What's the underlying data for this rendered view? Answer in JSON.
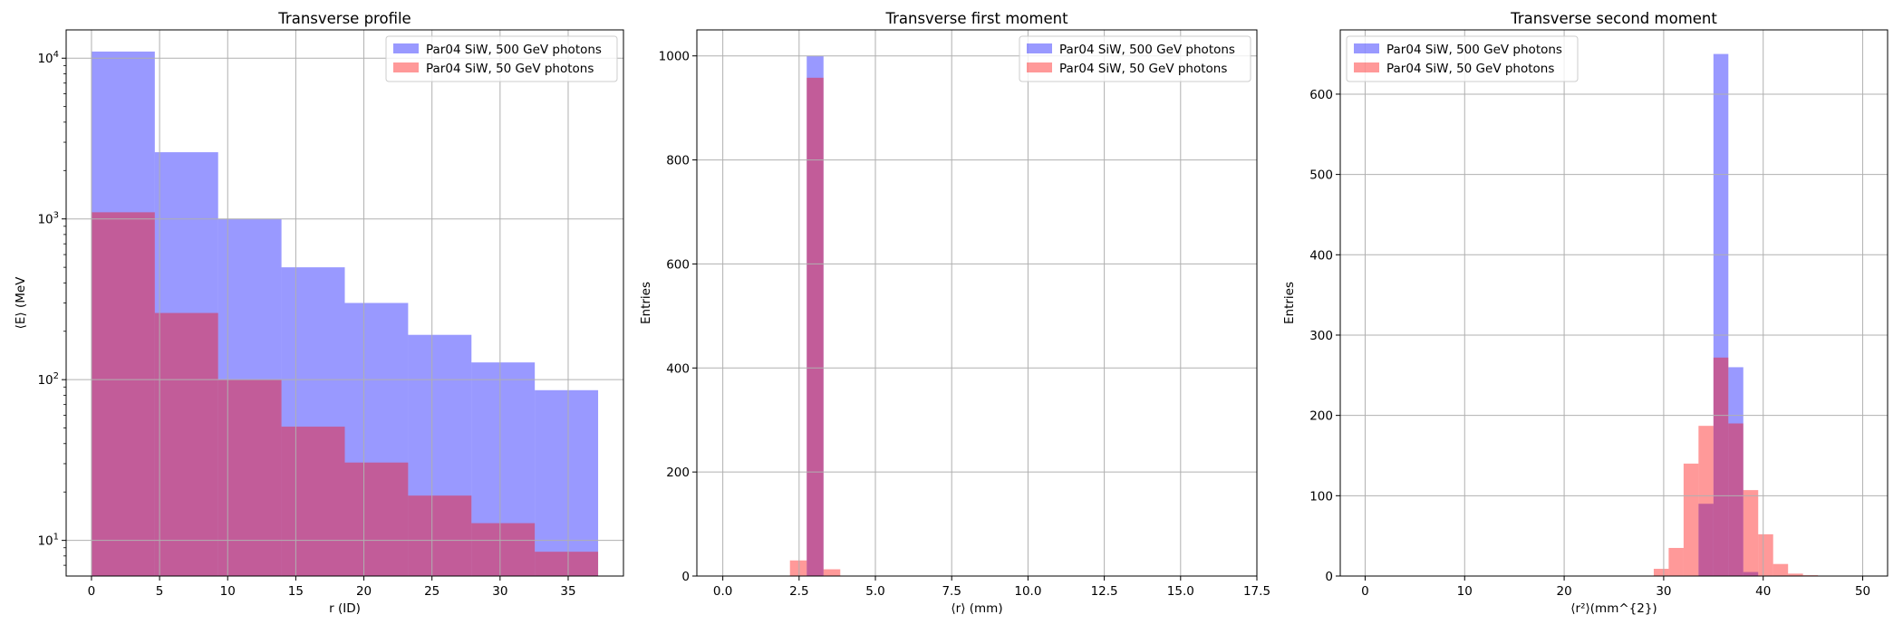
{
  "chart_data": [
    {
      "type": "bar",
      "title": "Transverse profile",
      "xlabel": "r (ID)",
      "ylabel": "⟨E⟩ (MeV",
      "xlim": [
        -1.86,
        39.06
      ],
      "ylim": [
        6,
        15000
      ],
      "yscale": "log",
      "grid": true,
      "legend_position": "top-right",
      "xticks": [
        0,
        5,
        10,
        15,
        20,
        25,
        30,
        35
      ],
      "yticks": [
        {
          "value": 10,
          "base": "10",
          "exp": "1"
        },
        {
          "value": 100,
          "base": "10",
          "exp": "2"
        },
        {
          "value": 1000,
          "base": "10",
          "exp": "3"
        },
        {
          "value": 10000,
          "base": "10",
          "exp": "4"
        }
      ],
      "bin_edges": [
        0,
        4.65,
        9.3,
        13.95,
        18.6,
        23.25,
        27.9,
        32.55,
        37.2
      ],
      "series": [
        {
          "name": "Par04 SiW, 500 GeV photons",
          "color": "#0000ff",
          "values": [
            11000,
            2600,
            1000,
            500,
            300,
            190,
            128,
            86
          ]
        },
        {
          "name": "Par04 SiW, 50 GeV photons",
          "color": "#ff0000",
          "values": [
            1100,
            260,
            100,
            51,
            30.5,
            19,
            12.8,
            8.5
          ]
        }
      ]
    },
    {
      "type": "bar",
      "title": "Transverse first moment",
      "xlabel": "⟨r⟩ (mm)",
      "ylabel": "Entries",
      "xlim": [
        -0.85,
        17.5
      ],
      "ylim": [
        0,
        1050
      ],
      "yscale": "linear",
      "grid": true,
      "legend_position": "top-right",
      "xticks": [
        "0.0",
        "2.5",
        "5.0",
        "7.5",
        "10.0",
        "12.5",
        "15.0",
        "17.5"
      ],
      "yticks": [
        0,
        200,
        400,
        600,
        800,
        1000
      ],
      "bin_edges": [
        2.2,
        2.75,
        3.3,
        3.85
      ],
      "series": [
        {
          "name": "Par04 SiW, 500 GeV photons",
          "color": "#0000ff",
          "values": [
            0,
            1000,
            0
          ]
        },
        {
          "name": "Par04 SiW, 50 GeV photons",
          "color": "#ff0000",
          "values": [
            30,
            958,
            13
          ]
        }
      ]
    },
    {
      "type": "bar",
      "title": "Transverse second moment",
      "xlabel": "⟨r²⟩(mm^{2})",
      "ylabel": "Entries",
      "xlim": [
        -2.5,
        52.5
      ],
      "ylim": [
        0,
        680
      ],
      "yscale": "linear",
      "grid": true,
      "legend_position": "top-left",
      "xticks": [
        0,
        10,
        20,
        30,
        40,
        50
      ],
      "yticks": [
        0,
        100,
        200,
        300,
        400,
        500,
        600
      ],
      "bin_edges": [
        29,
        30.5,
        32,
        33.5,
        35,
        36.5,
        38,
        39.5,
        41,
        42.5,
        44,
        45.5,
        47
      ],
      "series": [
        {
          "name": "Par04 SiW, 500 GeV photons",
          "color": "#0000ff",
          "values": [
            0,
            0,
            0,
            90,
            650,
            260,
            5,
            0,
            0,
            0,
            0,
            0
          ]
        },
        {
          "name": "Par04 SiW, 50 GeV photons",
          "color": "#ff0000",
          "values": [
            9,
            35,
            140,
            187,
            272,
            190,
            107,
            52,
            15,
            3,
            1,
            0
          ]
        }
      ]
    }
  ]
}
